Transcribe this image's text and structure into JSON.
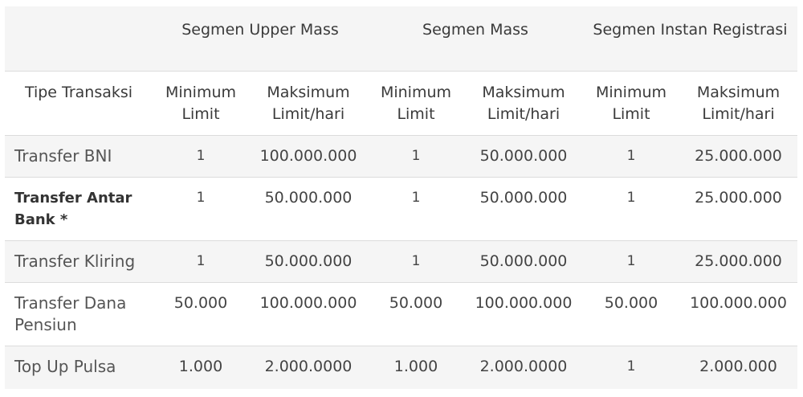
{
  "table": {
    "group_headers": [
      "",
      "Segmen Upper Mass",
      "Segmen Mass",
      "Segmen Instan Registrasi"
    ],
    "type_header": "Tipe Transaksi",
    "sub_headers": [
      "Minimum Limit",
      "Maksimum Limit/hari",
      "Minimum Limit",
      "Maksimum Limit/hari",
      "Minimum Limit",
      "Maksimum Limit/hari"
    ],
    "rows": [
      {
        "type": "Transfer BNI",
        "bold": false,
        "values": [
          "1",
          "100.000.000",
          "1",
          "50.000.000",
          "1",
          "25.000.000"
        ]
      },
      {
        "type": "Transfer Antar Bank *",
        "bold": true,
        "values": [
          "1",
          "50.000.000",
          "1",
          "50.000.000",
          "1",
          "25.000.000"
        ]
      },
      {
        "type": "Transfer Kliring",
        "bold": false,
        "values": [
          "1",
          "50.000.000",
          "1",
          "50.000.000",
          "1",
          "25.000.000"
        ]
      },
      {
        "type": "Transfer Dana Pensiun",
        "bold": false,
        "values": [
          "50.000",
          "100.000.000",
          "50.000",
          "100.000.000",
          "50.000",
          "100.000.000"
        ]
      },
      {
        "type": "Top Up Pulsa",
        "bold": false,
        "values": [
          "1.000",
          "2.000.0000",
          "1.000",
          "2.000.0000",
          "1",
          "2.000.000"
        ]
      }
    ]
  }
}
